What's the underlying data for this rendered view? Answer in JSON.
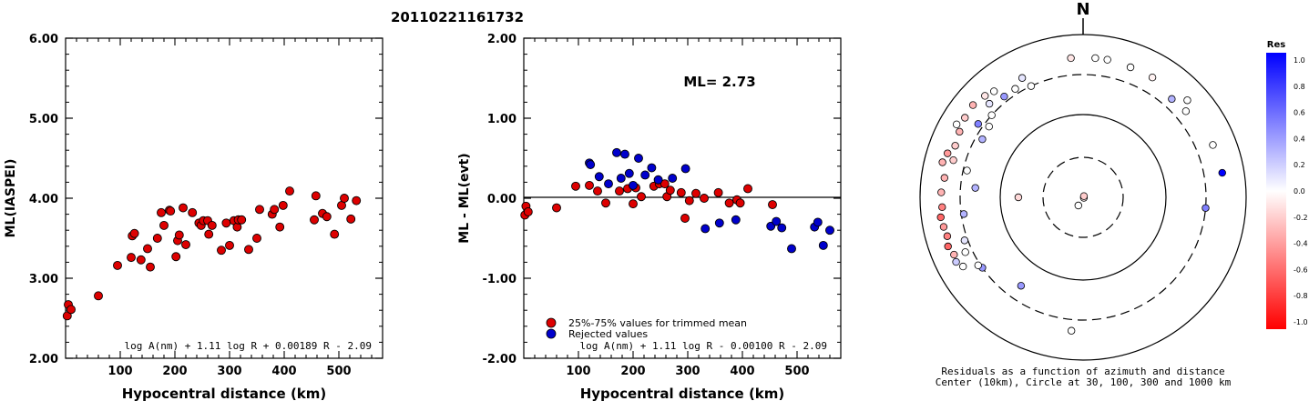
{
  "figure": {
    "title": "20110221161732"
  },
  "chart_data": [
    {
      "type": "scatter",
      "xlabel": "Hypocentral distance (km)",
      "ylabel": "ML(IASPEI)",
      "xlim": [
        0,
        580
      ],
      "ylim": [
        2.0,
        6.0
      ],
      "xticks": [
        "100",
        "200",
        "300",
        "400",
        "500"
      ],
      "yticks": [
        "2.00",
        "3.00",
        "4.00",
        "5.00",
        "6.00"
      ],
      "formula": "log A(nm) + 1.11 log R + 0.00189 R - 2.09",
      "series": [
        {
          "color": "#dd0000",
          "points": [
            [
              3,
              2.53
            ],
            [
              5,
              2.67
            ],
            [
              10,
              2.61
            ],
            [
              60,
              2.78
            ],
            [
              95,
              3.16
            ],
            [
              120,
              3.26
            ],
            [
              122,
              3.53
            ],
            [
              126,
              3.56
            ],
            [
              138,
              3.23
            ],
            [
              150,
              3.37
            ],
            [
              155,
              3.14
            ],
            [
              168,
              3.5
            ],
            [
              175,
              3.82
            ],
            [
              180,
              3.66
            ],
            [
              190,
              3.85
            ],
            [
              192,
              3.84
            ],
            [
              202,
              3.27
            ],
            [
              205,
              3.47
            ],
            [
              208,
              3.54
            ],
            [
              215,
              3.88
            ],
            [
              220,
              3.42
            ],
            [
              232,
              3.82
            ],
            [
              244,
              3.69
            ],
            [
              248,
              3.66
            ],
            [
              252,
              3.72
            ],
            [
              260,
              3.72
            ],
            [
              262,
              3.55
            ],
            [
              268,
              3.66
            ],
            [
              285,
              3.35
            ],
            [
              294,
              3.69
            ],
            [
              300,
              3.41
            ],
            [
              308,
              3.72
            ],
            [
              314,
              3.64
            ],
            [
              316,
              3.73
            ],
            [
              322,
              3.73
            ],
            [
              335,
              3.36
            ],
            [
              350,
              3.5
            ],
            [
              355,
              3.86
            ],
            [
              378,
              3.8
            ],
            [
              382,
              3.86
            ],
            [
              392,
              3.64
            ],
            [
              398,
              3.91
            ],
            [
              410,
              4.09
            ],
            [
              455,
              3.73
            ],
            [
              458,
              4.03
            ],
            [
              470,
              3.81
            ],
            [
              478,
              3.77
            ],
            [
              492,
              3.55
            ],
            [
              505,
              3.91
            ],
            [
              510,
              4.0
            ],
            [
              522,
              3.74
            ],
            [
              532,
              3.97
            ]
          ]
        }
      ]
    },
    {
      "type": "scatter",
      "xlabel": "Hypocentral distance (km)",
      "ylabel": "ML - ML(evt)",
      "xlim": [
        0,
        580
      ],
      "ylim": [
        -2.0,
        2.0
      ],
      "xticks": [
        "100",
        "200",
        "300",
        "400",
        "500"
      ],
      "yticks": [
        "-2.00",
        "-1.00",
        "0.00",
        "1.00",
        "2.00"
      ],
      "annotation": "ML= 2.73",
      "formula": "log A(nm) + 1.11 log R - 0.00100 R - 2.09",
      "legend": [
        {
          "label": "25%-75% values for trimmed mean",
          "color": "#dd0000"
        },
        {
          "label": "Rejected values",
          "color": "#0000cc"
        }
      ],
      "series": [
        {
          "name": "25%-75% values for trimmed mean",
          "color": "#dd0000",
          "points": [
            [
              2,
              -0.21
            ],
            [
              4,
              -0.1
            ],
            [
              8,
              -0.17
            ],
            [
              60,
              -0.12
            ],
            [
              95,
              0.15
            ],
            [
              120,
              0.16
            ],
            [
              135,
              0.09
            ],
            [
              150,
              -0.06
            ],
            [
              175,
              0.09
            ],
            [
              190,
              0.12
            ],
            [
              200,
              -0.07
            ],
            [
              205,
              0.13
            ],
            [
              215,
              0.02
            ],
            [
              238,
              0.15
            ],
            [
              248,
              0.18
            ],
            [
              258,
              0.18
            ],
            [
              262,
              0.02
            ],
            [
              268,
              0.1
            ],
            [
              288,
              0.07
            ],
            [
              295,
              -0.25
            ],
            [
              303,
              -0.03
            ],
            [
              315,
              0.06
            ],
            [
              330,
              0.0
            ],
            [
              356,
              0.07
            ],
            [
              376,
              -0.06
            ],
            [
              390,
              -0.02
            ],
            [
              396,
              -0.06
            ],
            [
              410,
              0.12
            ],
            [
              455,
              -0.08
            ]
          ]
        },
        {
          "name": "Rejected values",
          "color": "#0000cc",
          "points": [
            [
              120,
              0.44
            ],
            [
              122,
              0.42
            ],
            [
              138,
              0.27
            ],
            [
              155,
              0.18
            ],
            [
              170,
              0.57
            ],
            [
              178,
              0.25
            ],
            [
              185,
              0.55
            ],
            [
              193,
              0.31
            ],
            [
              200,
              0.16
            ],
            [
              210,
              0.5
            ],
            [
              222,
              0.29
            ],
            [
              234,
              0.38
            ],
            [
              246,
              0.23
            ],
            [
              272,
              0.25
            ],
            [
              296,
              0.37
            ],
            [
              332,
              -0.38
            ],
            [
              358,
              -0.31
            ],
            [
              388,
              -0.27
            ],
            [
              452,
              -0.35
            ],
            [
              462,
              -0.29
            ],
            [
              472,
              -0.37
            ],
            [
              490,
              -0.63
            ],
            [
              532,
              -0.36
            ],
            [
              538,
              -0.3
            ],
            [
              548,
              -0.59
            ],
            [
              560,
              -0.4
            ]
          ]
        }
      ]
    },
    {
      "type": "scatter",
      "subtype": "polar",
      "north_label": "N",
      "caption_line1": "Residuals as a function of azimuth and distance",
      "caption_line2": "Center (10km), Circle at 30, 100, 300 and 1000 km",
      "rings_km": [
        10,
        30,
        100,
        300,
        1000
      ],
      "colorbar": {
        "title": "Res",
        "labels": [
          "1.0",
          "0.8",
          "0.6",
          "0.4",
          "0.2",
          "0.0",
          "-0.2",
          "-0.4",
          "-0.6",
          "-0.8",
          "-1.0"
        ]
      },
      "stations": [
        {
          "azimuth_deg": 120,
          "distance_km": 5,
          "residual": -0.05
        },
        {
          "azimuth_deg": 35,
          "distance_km": 8,
          "residual": -0.2
        },
        {
          "azimuth_deg": 210,
          "distance_km": 14,
          "residual": 0.0
        },
        {
          "azimuth_deg": 270,
          "distance_km": 60,
          "residual": -0.15
        },
        {
          "azimuth_deg": 335,
          "distance_km": 300,
          "residual": 0.0
        },
        {
          "azimuth_deg": 5,
          "distance_km": 500,
          "residual": 0.0
        },
        {
          "azimuth_deg": -5,
          "distance_km": 500,
          "residual": -0.1
        },
        {
          "azimuth_deg": 20,
          "distance_km": 480,
          "residual": 0.0
        },
        {
          "azimuth_deg": 30,
          "distance_km": 480,
          "residual": -0.05
        },
        {
          "azimuth_deg": 42,
          "distance_km": 400,
          "residual": 0.3
        },
        {
          "azimuth_deg": 50,
          "distance_km": 420,
          "residual": 0.0
        },
        {
          "azimuth_deg": 68,
          "distance_km": 500,
          "residual": 0.0
        },
        {
          "azimuth_deg": 95,
          "distance_km": 300,
          "residual": 0.5
        },
        {
          "azimuth_deg": 185,
          "distance_km": 420,
          "residual": 0.0
        },
        {
          "azimuth_deg": 215,
          "distance_km": 200,
          "residual": 0.4
        },
        {
          "azimuth_deg": 235,
          "distance_km": 300,
          "residual": 0.4
        },
        {
          "azimuth_deg": 300,
          "distance_km": 250,
          "residual": 0.3
        },
        {
          "azimuth_deg": 307,
          "distance_km": 260,
          "residual": 0.0
        },
        {
          "azimuth_deg": 315,
          "distance_km": 400,
          "residual": 0.1
        },
        {
          "azimuth_deg": 322,
          "distance_km": 350,
          "residual": 0.4
        },
        {
          "azimuth_deg": 328,
          "distance_km": 350,
          "residual": 0.0
        },
        {
          "azimuth_deg": 333,
          "distance_km": 420,
          "residual": 0.1
        },
        {
          "azimuth_deg": 305,
          "distance_km": 350,
          "residual": 0.5
        },
        {
          "azimuth_deg": 283,
          "distance_km": 270,
          "residual": 0.0
        },
        {
          "azimuth_deg": 275,
          "distance_km": 200,
          "residual": 0.3
        },
        {
          "azimuth_deg": 262,
          "distance_km": 280,
          "residual": 0.3
        },
        {
          "azimuth_deg": 250,
          "distance_km": 330,
          "residual": 0.1
        },
        {
          "azimuth_deg": 245,
          "distance_km": 370,
          "residual": 0.0
        },
        {
          "azimuth_deg": 237,
          "distance_km": 320,
          "residual": 0.0
        },
        {
          "azimuth_deg": 312,
          "distance_km": 300,
          "residual": 0.0
        },
        {
          "azimuth_deg": 286,
          "distance_km": 430,
          "residual": -0.2
        },
        {
          "azimuth_deg": 292,
          "distance_km": 470,
          "residual": -0.2
        },
        {
          "azimuth_deg": 298,
          "distance_km": 500,
          "residual": -0.3
        },
        {
          "azimuth_deg": 304,
          "distance_km": 540,
          "residual": -0.2
        },
        {
          "azimuth_deg": 310,
          "distance_km": 560,
          "residual": -0.3
        },
        {
          "azimuth_deg": 316,
          "distance_km": 520,
          "residual": -0.1
        },
        {
          "azimuth_deg": 320,
          "distance_km": 480,
          "residual": 0.0
        },
        {
          "azimuth_deg": 278,
          "distance_km": 500,
          "residual": -0.3
        },
        {
          "azimuth_deg": 272,
          "distance_km": 530,
          "residual": -0.3
        },
        {
          "azimuth_deg": 266,
          "distance_km": 520,
          "residual": -0.5
        },
        {
          "azimuth_deg": 262,
          "distance_km": 560,
          "residual": -0.6
        },
        {
          "azimuth_deg": 258,
          "distance_km": 540,
          "residual": -0.4
        },
        {
          "azimuth_deg": 254,
          "distance_km": 520,
          "residual": -0.5
        },
        {
          "azimuth_deg": 250,
          "distance_km": 560,
          "residual": -0.6
        },
        {
          "azimuth_deg": 246,
          "distance_km": 520,
          "residual": -0.3
        },
        {
          "azimuth_deg": 243,
          "distance_km": 540,
          "residual": 0.2
        },
        {
          "azimuth_deg": 240,
          "distance_km": 480,
          "residual": 0.0
        },
        {
          "azimuth_deg": 288,
          "distance_km": 540,
          "residual": -0.4
        },
        {
          "azimuth_deg": 284,
          "distance_km": 580,
          "residual": -0.3
        },
        {
          "azimuth_deg": 300,
          "distance_km": 600,
          "residual": 0.0
        },
        {
          "azimuth_deg": 80,
          "distance_km": 520,
          "residual": 1.0
        },
        {
          "azimuth_deg": 47,
          "distance_km": 540,
          "residual": 0.0
        },
        {
          "azimuth_deg": 10,
          "distance_km": 500,
          "residual": 0.0
        }
      ]
    }
  ]
}
